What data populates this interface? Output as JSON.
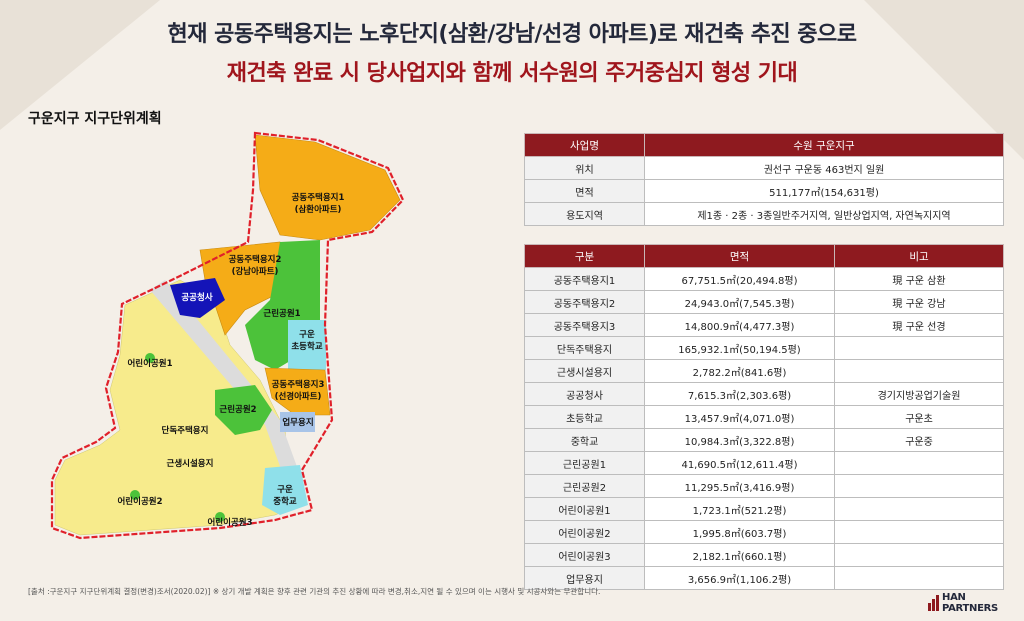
{
  "header": {
    "title_line1": "현재 공동주택용지는 노후단지(삼환/강남/선경 아파트)로 재건축 추진 중으로",
    "title_line2": "재건축 완료 시 당사업지와 함께 서수원의 주거중심지 형성 기대"
  },
  "section_label": "구운지구 지구단위계획",
  "map": {
    "labels": {
      "housing1": "공동주택용지1",
      "housing1_sub": "(삼환아파트)",
      "housing2": "공동주택용지2",
      "housing2_sub": "(강남아파트)",
      "housing3": "공동주택용지3",
      "housing3_sub": "(선경아파트)",
      "public_office": "공공청사",
      "park1": "근린공원1",
      "park2": "근린공원2",
      "elem_school": "구운",
      "elem_school_sub": "초등학교",
      "mid_school": "구운",
      "mid_school_sub": "중학교",
      "kids_park1": "어린이공원1",
      "kids_park2": "어린이공원2",
      "kids_park3": "어린이공원3",
      "single_housing": "단독주택용지",
      "neighborhood": "근생시설용지",
      "business": "업무용지"
    },
    "colors": {
      "apartment": "#f5ac17",
      "park": "#4cc23a",
      "public": "#1414b8",
      "school": "#8fe0ea",
      "residential": "#f7eb8c",
      "road": "#d9d9d9",
      "boundary": "#e0202a",
      "business": "#a8c4e8"
    }
  },
  "table1": {
    "header": [
      "사업명",
      "수원 구운지구"
    ],
    "rows": [
      [
        "위치",
        "권선구 구운동 463번지 일원"
      ],
      [
        "면적",
        "511,177㎡(154,631평)"
      ],
      [
        "용도지역",
        "제1종 · 2종 · 3종일반주거지역, 일반상업지역, 자연녹지지역"
      ]
    ]
  },
  "table2": {
    "headers": [
      "구분",
      "면적",
      "비고"
    ],
    "rows": [
      [
        "공동주택용지1",
        "67,751.5㎡(20,494.8평)",
        "現 구운 삼환"
      ],
      [
        "공동주택용지2",
        "24,943.0㎡(7,545.3평)",
        "現 구운 강남"
      ],
      [
        "공동주택용지3",
        "14,800.9㎡(4,477.3평)",
        "現 구운 선경"
      ],
      [
        "단독주택용지",
        "165,932.1㎡(50,194.5평)",
        ""
      ],
      [
        "근생시설용지",
        "2,782.2㎡(841.6평)",
        ""
      ],
      [
        "공공청사",
        "7,615.3㎡(2,303.6평)",
        "경기지방공업기술원"
      ],
      [
        "초등학교",
        "13,457.9㎡(4,071.0평)",
        "구운초"
      ],
      [
        "중학교",
        "10,984.3㎡(3,322.8평)",
        "구운중"
      ],
      [
        "근린공원1",
        "41,690.5㎡(12,611.4평)",
        ""
      ],
      [
        "근린공원2",
        "11,295.5㎡(3,416.9평)",
        ""
      ],
      [
        "어린이공원1",
        "1,723.1㎡(521.2평)",
        ""
      ],
      [
        "어린이공원2",
        "1,995.8㎡(603.7평)",
        ""
      ],
      [
        "어린이공원3",
        "2,182.1㎡(660.1평)",
        ""
      ],
      [
        "업무용지",
        "3,656.9㎡(1,106.2평)",
        ""
      ]
    ]
  },
  "footnote": "[출처 :구운지구 지구단위계획 결정(변경)조서(2020.02)] ※ 상기 개발 계획은 향후 관련 기관의 추진 상황에 따라 변경,취소,지연 될 수 있으며 이는 시행사 및 시공사와는 무관합니다.",
  "logo": "HAN PARTNERS"
}
